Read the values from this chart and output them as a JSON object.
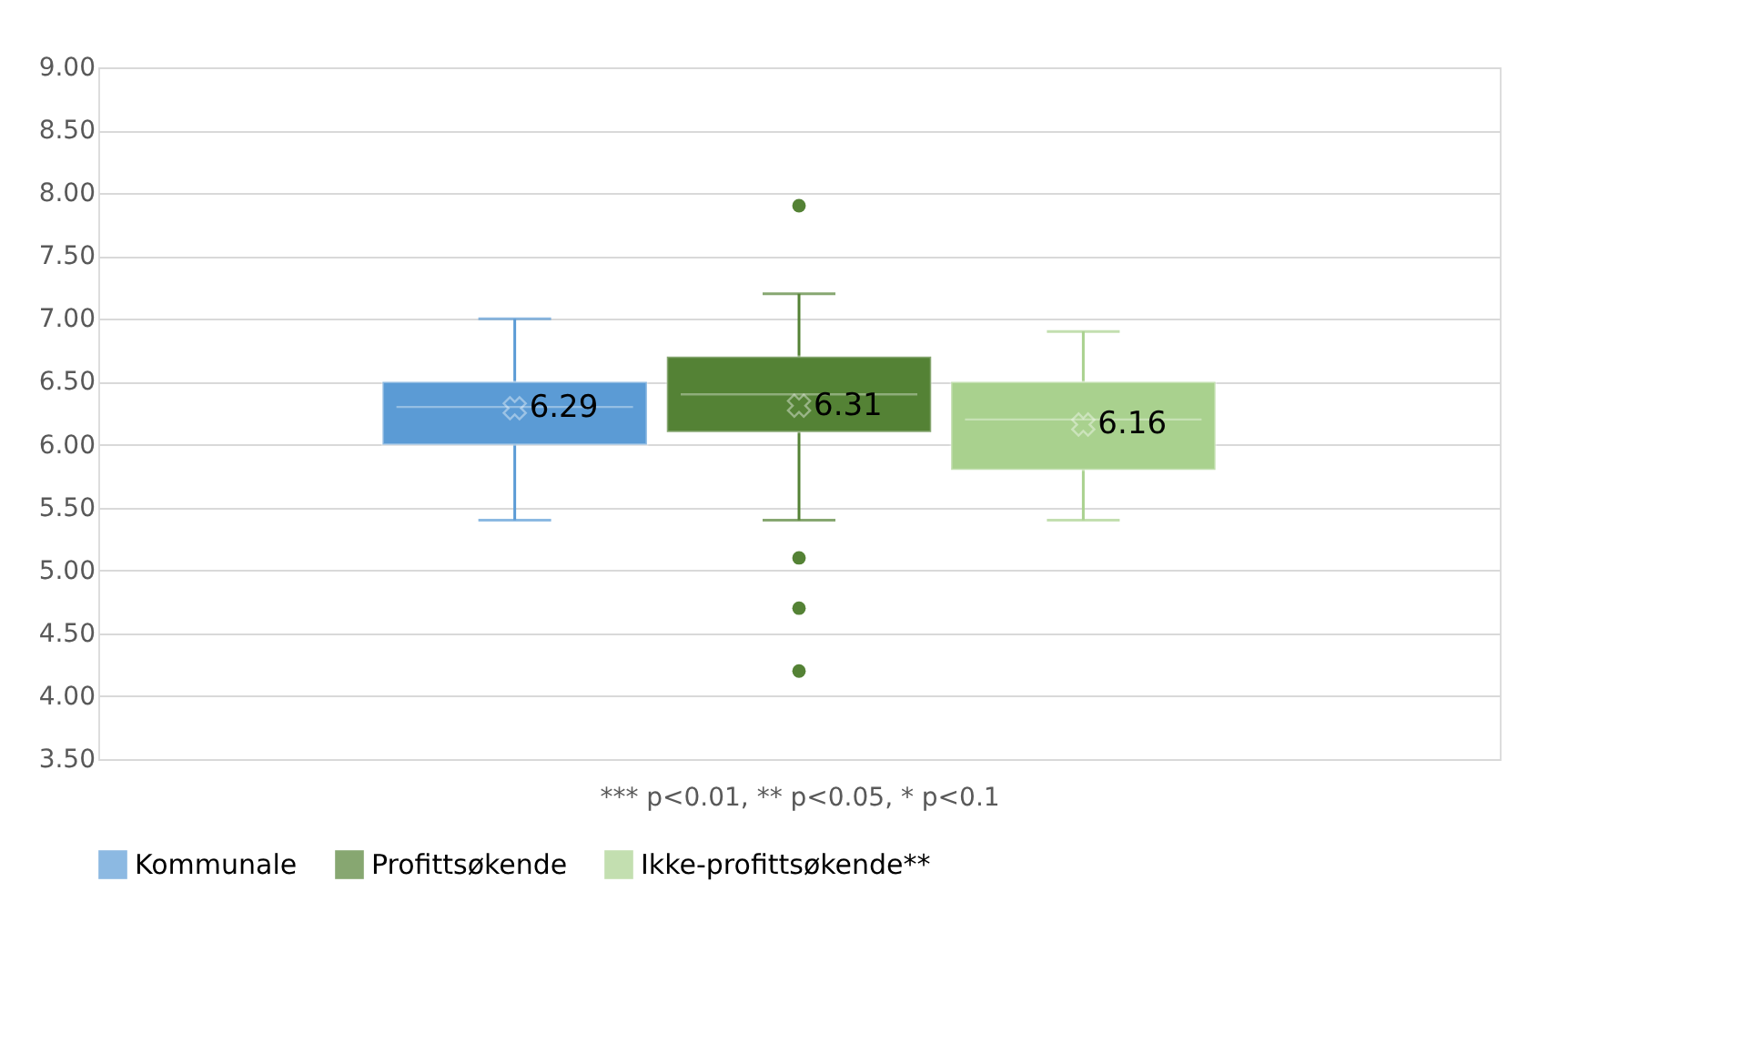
{
  "chart_data": {
    "type": "box",
    "categories": [
      null
    ],
    "series": [
      {
        "name": "Kommunale",
        "color": "#5b9bd5",
        "boxes": [
          {
            "low": 5.4,
            "q1": 6.0,
            "median": 6.3,
            "q3": 6.5,
            "high": 7.0,
            "mean": 6.29
          }
        ],
        "value_labels": [
          "6.29"
        ]
      },
      {
        "name": "Profittsøkende",
        "color": "#548235",
        "boxes": [
          {
            "low": 5.4,
            "q1": 6.1,
            "median": 6.4,
            "q3": 6.7,
            "high": 7.2,
            "mean": 6.31,
            "outliers": [
              7.9,
              5.1,
              4.7,
              4.2
            ]
          }
        ],
        "value_labels": [
          "6.31"
        ]
      },
      {
        "name": "Ikke-profittsøkende**",
        "color": "#a9d18e",
        "boxes": [
          {
            "low": 5.4,
            "q1": 5.8,
            "median": 6.2,
            "q3": 6.5,
            "high": 6.9,
            "mean": 6.16
          }
        ],
        "value_labels": [
          "6.16"
        ]
      }
    ],
    "ylim": [
      3.5,
      9.0
    ],
    "yticks": [
      {
        "value": 3.5,
        "label": "3.50"
      },
      {
        "value": 4.0,
        "label": "4.00"
      },
      {
        "value": 4.5,
        "label": "4.50"
      },
      {
        "value": 5.0,
        "label": "5.00"
      },
      {
        "value": 5.5,
        "label": "5.50"
      },
      {
        "value": 6.0,
        "label": "6.00"
      },
      {
        "value": 6.5,
        "label": "6.50"
      },
      {
        "value": 7.0,
        "label": "7.00"
      },
      {
        "value": 7.5,
        "label": "7.50"
      },
      {
        "value": 8.0,
        "label": "8.00"
      },
      {
        "value": 8.5,
        "label": "8.50"
      },
      {
        "value": 9.0,
        "label": "9.00"
      }
    ],
    "annotations": [
      "*** p<0.01, ** p<0.05, * p<0.1"
    ],
    "data_labels": true,
    "grid": "y",
    "legend": "bottom"
  }
}
